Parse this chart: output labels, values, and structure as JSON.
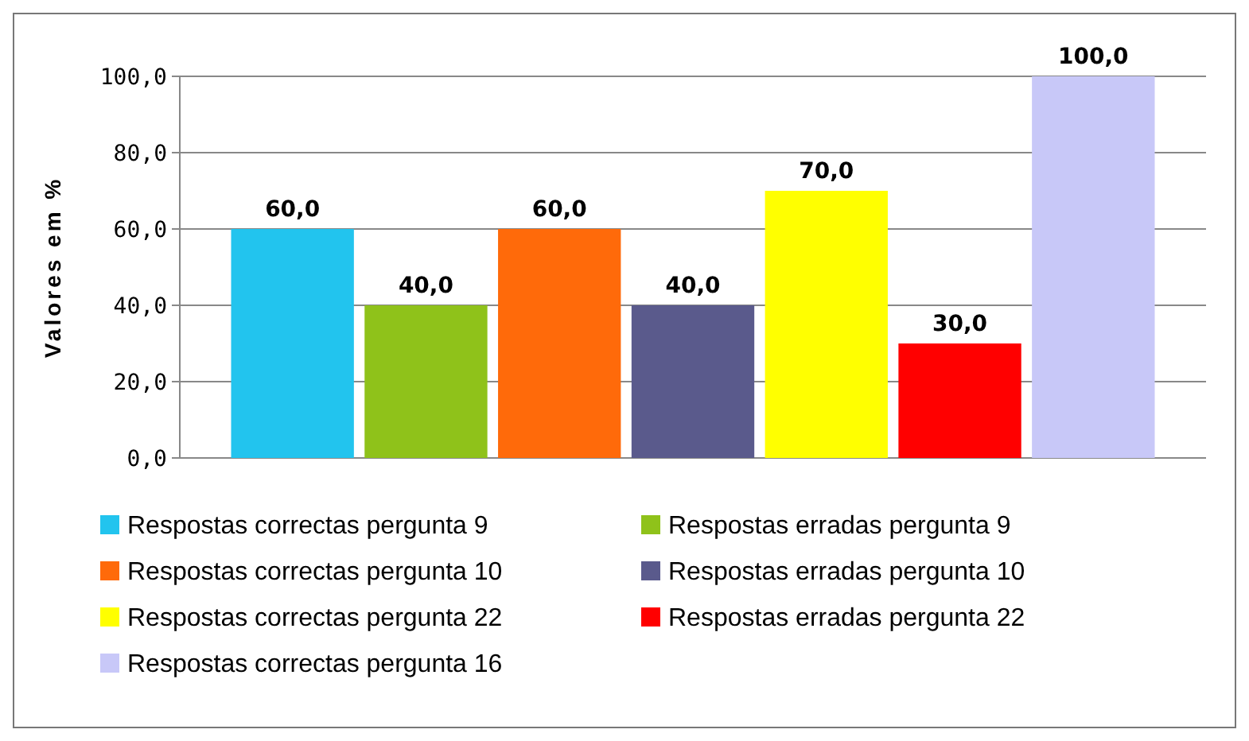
{
  "chart_data": {
    "type": "bar",
    "ylabel": "Valores em %",
    "categories": [
      null
    ],
    "series": [
      {
        "name": "Respostas correctas pergunta 9",
        "color": "#22c4ee",
        "values": [
          60
        ],
        "value_labels": [
          "60,0"
        ]
      },
      {
        "name": "Respostas erradas pergunta 9",
        "color": "#8fc21a",
        "values": [
          40
        ],
        "value_labels": [
          "40,0"
        ]
      },
      {
        "name": "Respostas correctas pergunta 10",
        "color": "#ff6a0a",
        "values": [
          60
        ],
        "value_labels": [
          "60,0"
        ]
      },
      {
        "name": "Respostas erradas pergunta 10",
        "color": "#5a5a8c",
        "values": [
          40
        ],
        "value_labels": [
          "40,0"
        ]
      },
      {
        "name": "Respostas correctas pergunta 22",
        "color": "#ffff00",
        "values": [
          70
        ],
        "value_labels": [
          "70,0"
        ]
      },
      {
        "name": "Respostas erradas pergunta 22",
        "color": "#ff0000",
        "values": [
          30
        ],
        "value_labels": [
          "30,0"
        ]
      },
      {
        "name": "Respostas correctas pergunta 16",
        "color": "#c8c8f8",
        "values": [
          100
        ],
        "value_labels": [
          "100,0"
        ]
      }
    ],
    "ylim": [
      0,
      100
    ],
    "yticks": [
      {
        "value": 0,
        "label": "0,0"
      },
      {
        "value": 20,
        "label": "20,0"
      },
      {
        "value": 40,
        "label": "40,0"
      },
      {
        "value": 60,
        "label": "60,0"
      },
      {
        "value": 80,
        "label": "80,0"
      },
      {
        "value": 100,
        "label": "100,0"
      }
    ],
    "grid": "y",
    "legend": "bottom"
  }
}
